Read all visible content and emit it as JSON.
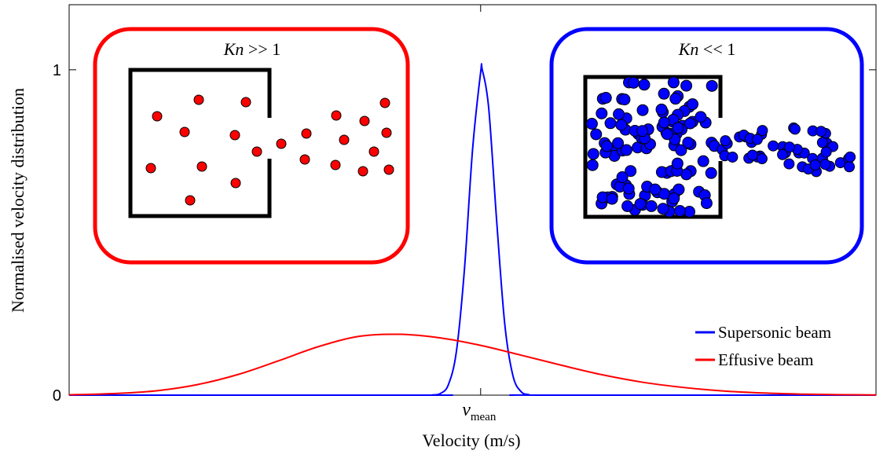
{
  "chart_data": {
    "type": "line",
    "xlabel": "Velocity (m/s)",
    "ylabel": "Normalised velocity distribution",
    "xlim": [
      -5.1,
      4.9
    ],
    "ylim": [
      0,
      1.2
    ],
    "yticks": [
      0,
      1
    ],
    "xticks": [
      {
        "value": 0,
        "label": "v",
        "subscript": "mean"
      }
    ],
    "grid": false,
    "legend": "lower right",
    "annotations": [
      {
        "italic": "Kn",
        "text": " >> 1",
        "color": "#ff0000"
      },
      {
        "italic": "Kn",
        "text": " << 1",
        "color": "#0000ff"
      }
    ],
    "series": [
      {
        "name": "Supersonic beam",
        "color": "#0000ff",
        "x": [
          -5.1,
          -0.7,
          -0.6,
          -0.5,
          -0.4,
          -0.3,
          -0.2,
          -0.1,
          0,
          0.02,
          0.1,
          0.2,
          0.3,
          0.4,
          0.5,
          0.6,
          0.7,
          4.9
        ],
        "values": [
          0,
          0,
          0.0006,
          0.005,
          0.032,
          0.135,
          0.389,
          0.755,
          0.992,
          1,
          0.882,
          0.531,
          0.216,
          0.06,
          0.011,
          0.0014,
          0.0001,
          0
        ]
      },
      {
        "name": "Effusive beam",
        "color": "#ff0000",
        "x": [
          -5.1,
          -5,
          -4.5,
          -4,
          -3.5,
          -3,
          -2.5,
          -2,
          -1.5,
          -1,
          -0.5,
          0,
          0.5,
          1,
          1.5,
          2,
          2.5,
          3,
          3.5,
          4,
          4.5,
          4.9
        ],
        "values": [
          0.0013,
          0.0017,
          0.0053,
          0.014,
          0.033,
          0.064,
          0.106,
          0.15,
          0.181,
          0.187,
          0.176,
          0.153,
          0.123,
          0.092,
          0.063,
          0.04,
          0.024,
          0.013,
          0.0066,
          0.0031,
          0.0013,
          0.0006
        ]
      }
    ]
  }
}
